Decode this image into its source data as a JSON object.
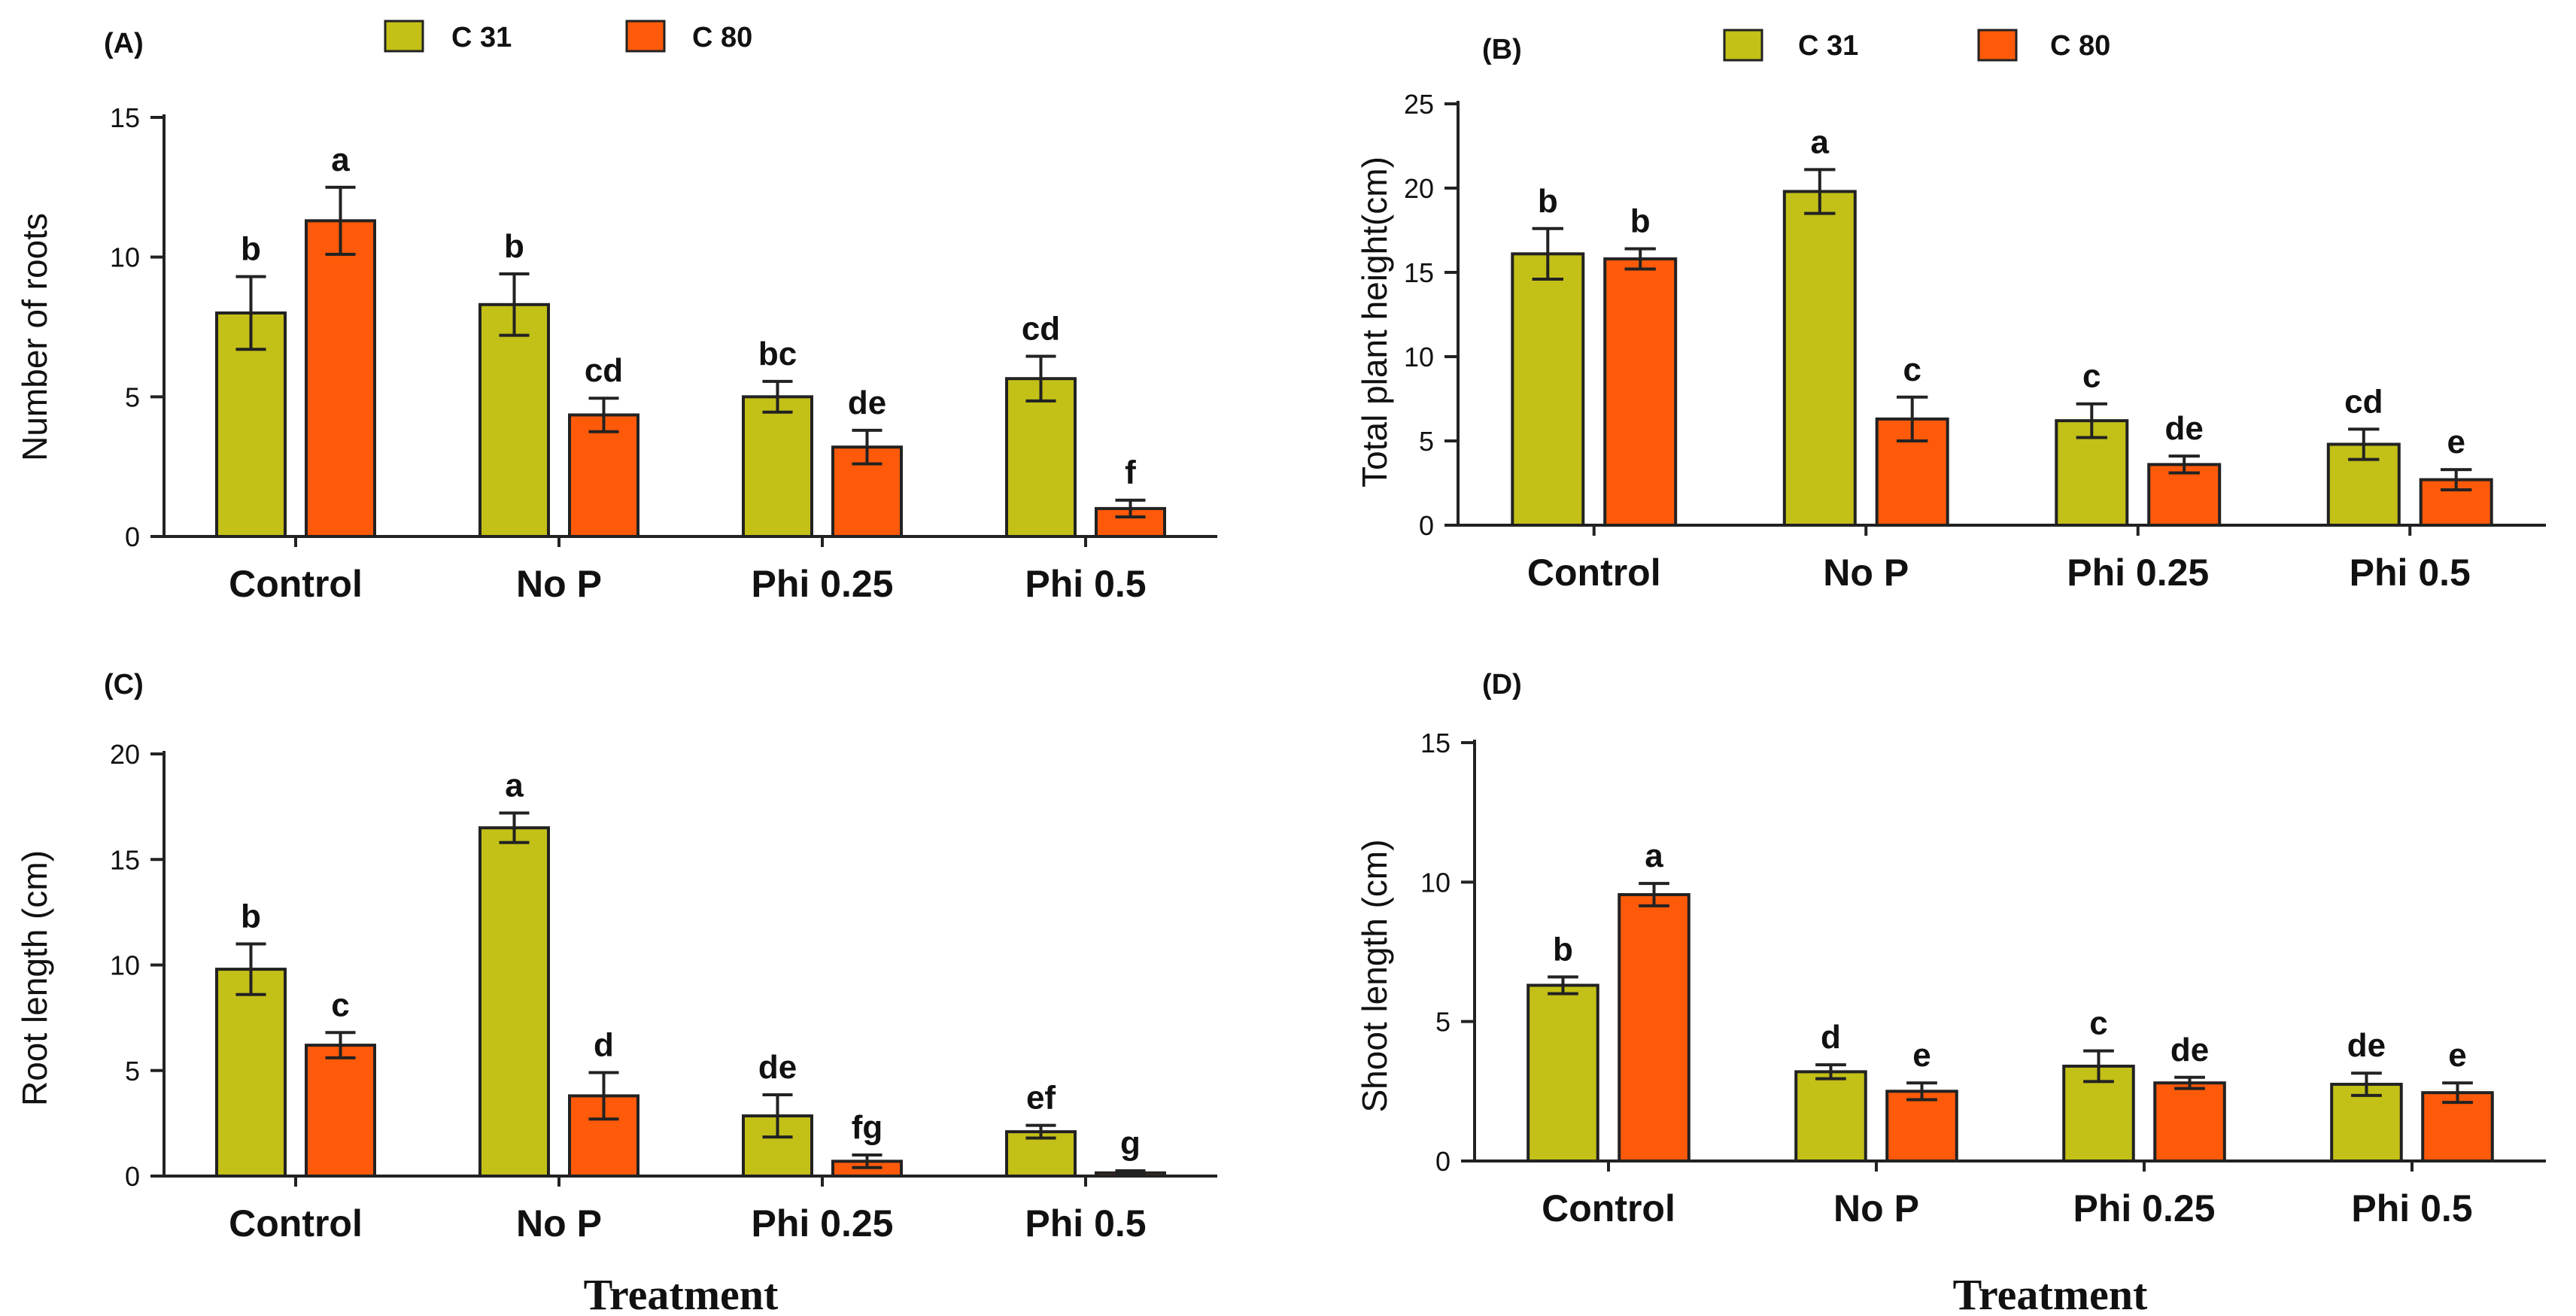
{
  "colors": {
    "c31": "#c3c018",
    "c80": "#ff5a0a",
    "edge": "#222222"
  },
  "legend": {
    "c31": "C 31",
    "c80": "C 80"
  },
  "x_title": "Treatment",
  "chart_data": [
    {
      "id": "A",
      "panel_label": "(A)",
      "type": "bar",
      "ylabel": "Number of roots",
      "ylim": [
        0,
        15
      ],
      "yticks": [
        0,
        5,
        10,
        15
      ],
      "categories": [
        "Control",
        "No P",
        "Phi 0.25",
        "Phi 0.5"
      ],
      "series": [
        {
          "name": "C 31",
          "values": [
            8.0,
            8.3,
            5.0,
            5.65
          ],
          "errors": [
            1.3,
            1.1,
            0.55,
            0.8
          ],
          "letters": [
            "b",
            "b",
            "bc",
            "cd"
          ]
        },
        {
          "name": "C 80",
          "values": [
            11.3,
            4.35,
            3.2,
            1.0
          ],
          "errors": [
            1.2,
            0.6,
            0.6,
            0.3
          ],
          "letters": [
            "a",
            "cd",
            "de",
            "f"
          ]
        }
      ]
    },
    {
      "id": "B",
      "panel_label": "(B)",
      "type": "bar",
      "ylabel": "Total plant height(cm)",
      "ylim": [
        0,
        25
      ],
      "yticks": [
        0,
        5,
        10,
        15,
        20,
        25
      ],
      "categories": [
        "Control",
        "No P",
        "Phi 0.25",
        "Phi 0.5"
      ],
      "series": [
        {
          "name": "C 31",
          "values": [
            16.1,
            19.8,
            6.2,
            4.8
          ],
          "errors": [
            1.5,
            1.3,
            1.0,
            0.9
          ],
          "letters": [
            "b",
            "a",
            "c",
            "cd"
          ]
        },
        {
          "name": "C 80",
          "values": [
            15.8,
            6.3,
            3.6,
            2.7
          ],
          "errors": [
            0.6,
            1.3,
            0.5,
            0.6
          ],
          "letters": [
            "b",
            "c",
            "de",
            "e"
          ]
        }
      ]
    },
    {
      "id": "C",
      "panel_label": "(C)",
      "type": "bar",
      "ylabel": "Root length (cm)",
      "ylim": [
        0,
        20
      ],
      "yticks": [
        0,
        5,
        10,
        15,
        20
      ],
      "categories": [
        "Control",
        "No P",
        "Phi 0.25",
        "Phi 0.5"
      ],
      "series": [
        {
          "name": "C 31",
          "values": [
            9.8,
            16.5,
            2.85,
            2.1
          ],
          "errors": [
            1.2,
            0.7,
            1.0,
            0.3
          ],
          "letters": [
            "b",
            "a",
            "de",
            "ef"
          ]
        },
        {
          "name": "C 80",
          "values": [
            6.2,
            3.8,
            0.7,
            0.15
          ],
          "errors": [
            0.6,
            1.1,
            0.3,
            0.1
          ],
          "letters": [
            "c",
            "d",
            "fg",
            "g"
          ]
        }
      ]
    },
    {
      "id": "D",
      "panel_label": "(D)",
      "type": "bar",
      "ylabel": "Shoot length (cm)",
      "ylim": [
        0,
        15
      ],
      "yticks": [
        0,
        5,
        10,
        15
      ],
      "categories": [
        "Control",
        "No P",
        "Phi 0.25",
        "Phi 0.5"
      ],
      "series": [
        {
          "name": "C 31",
          "values": [
            6.3,
            3.2,
            3.4,
            2.75
          ],
          "errors": [
            0.3,
            0.25,
            0.55,
            0.4
          ],
          "letters": [
            "b",
            "d",
            "c",
            "de"
          ]
        },
        {
          "name": "C 80",
          "values": [
            9.55,
            2.5,
            2.8,
            2.45
          ],
          "errors": [
            0.4,
            0.3,
            0.2,
            0.35
          ],
          "letters": [
            "a",
            "e",
            "de",
            "e"
          ]
        }
      ]
    }
  ]
}
